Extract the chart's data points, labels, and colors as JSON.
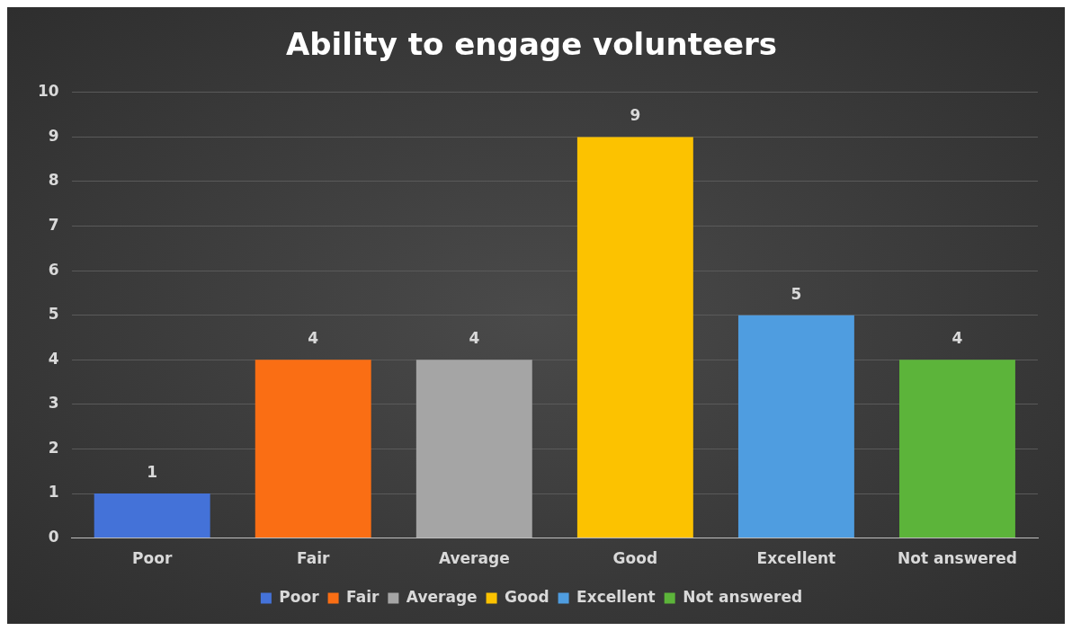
{
  "chart_data": {
    "type": "bar",
    "title": "Ability to engage volunteers",
    "categories": [
      "Poor",
      "Fair",
      "Average",
      "Good",
      "Excellent",
      "Not answered"
    ],
    "series": [
      {
        "name": "Poor",
        "color": "#4472d8",
        "values": [
          1,
          null,
          null,
          null,
          null,
          null
        ]
      },
      {
        "name": "Fair",
        "color": "#fa6e14",
        "values": [
          null,
          4,
          null,
          null,
          null,
          null
        ]
      },
      {
        "name": "Average",
        "color": "#a5a5a5",
        "values": [
          null,
          null,
          4,
          null,
          null,
          null
        ]
      },
      {
        "name": "Good",
        "color": "#fcc200",
        "values": [
          null,
          null,
          null,
          9,
          null,
          null
        ]
      },
      {
        "name": "Excellent",
        "color": "#4f9de0",
        "values": [
          null,
          null,
          null,
          null,
          5,
          null
        ]
      },
      {
        "name": "Not answered",
        "color": "#5cb43a",
        "values": [
          null,
          null,
          null,
          null,
          null,
          4
        ]
      }
    ],
    "ylim": [
      0,
      10
    ],
    "yticks": [
      0,
      1,
      2,
      3,
      4,
      5,
      6,
      7,
      8,
      9,
      10
    ],
    "grid": "y",
    "legend": "bottom",
    "data_labels": true
  }
}
